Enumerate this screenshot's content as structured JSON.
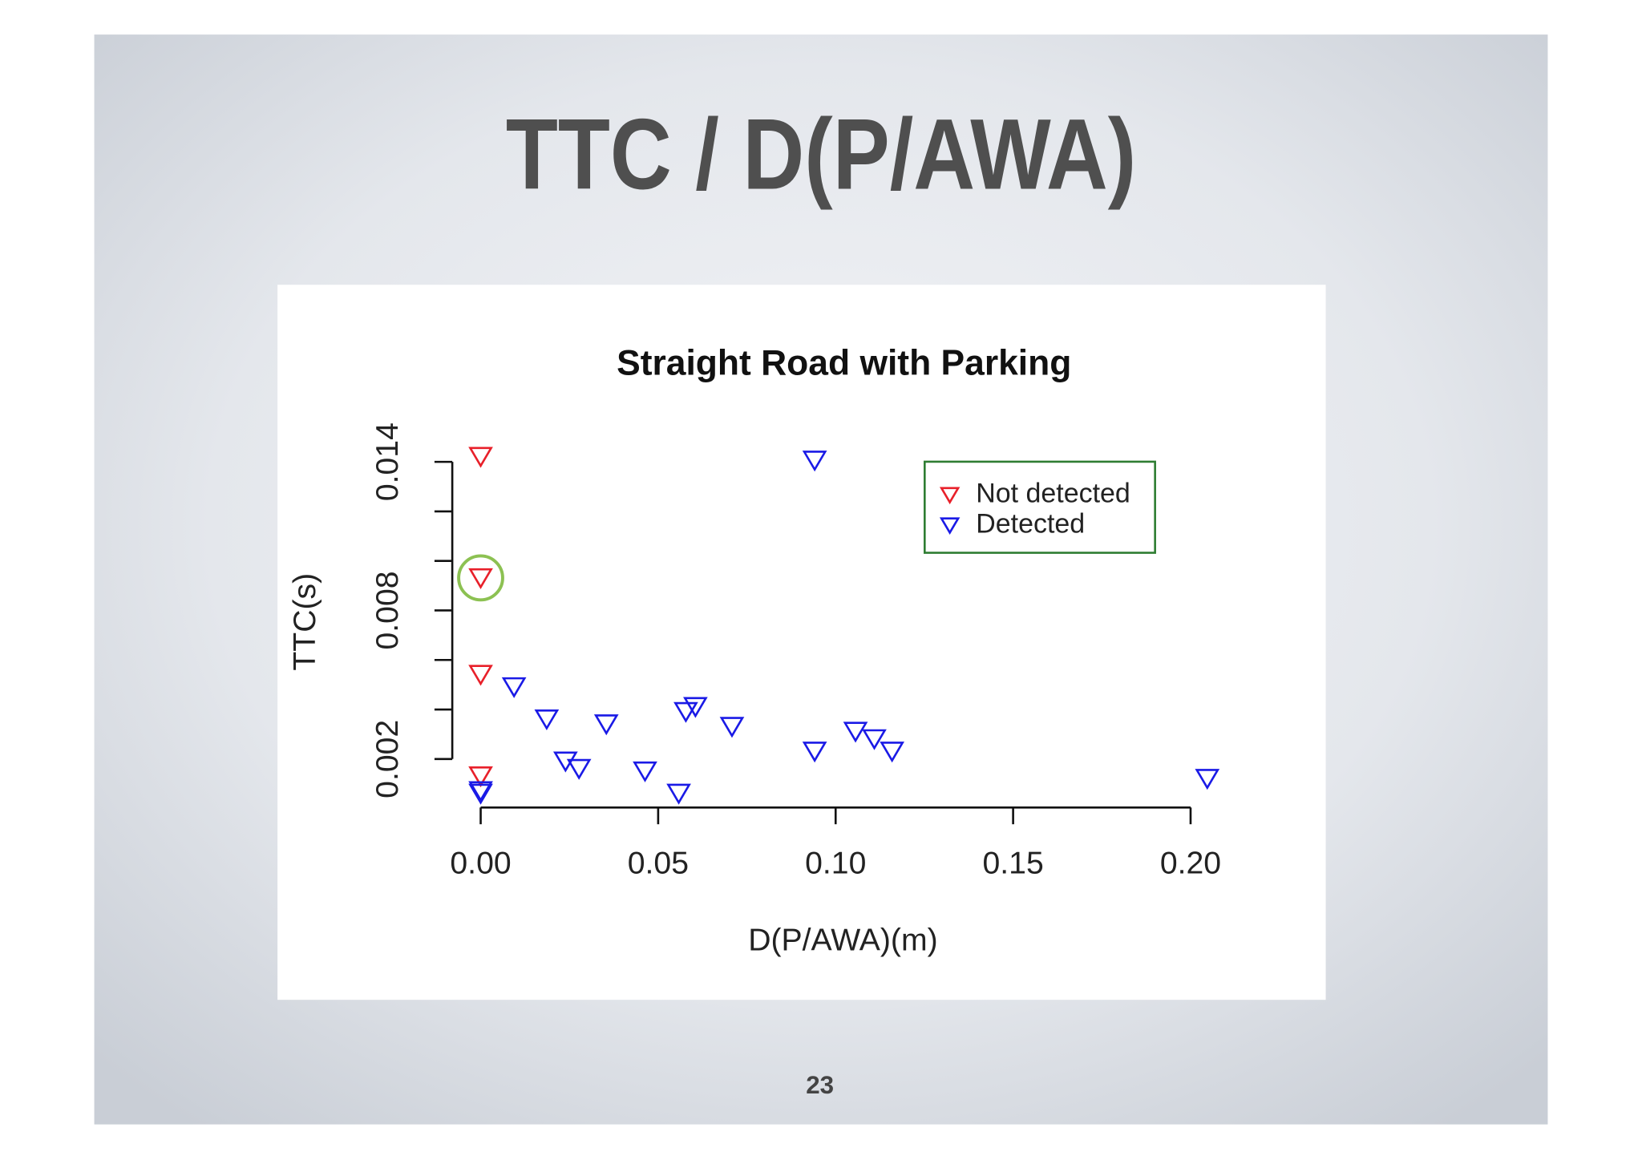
{
  "slide": {
    "title": "TTC / D(P/AWA)",
    "page_number": "23"
  },
  "chart_data": {
    "type": "scatter",
    "title": "Straight Road with Parking",
    "x_label": "D(P/AWA)(m)",
    "y_label": "TTC(s)",
    "xlim": [
      -0.008,
      0.213
    ],
    "ylim": [
      0,
      0.015
    ],
    "xticks": [
      {
        "value": 0,
        "label": "0.00"
      },
      {
        "value": 0.05,
        "label": "0.05"
      },
      {
        "value": 0.1,
        "label": "0.10"
      },
      {
        "value": 0.15,
        "label": "0.15"
      },
      {
        "value": 0.2,
        "label": "0.20"
      }
    ],
    "yticks": [
      0.002,
      0.008,
      0.014
    ],
    "yminorticks": [
      0.004,
      0.006,
      0.01,
      0.012
    ],
    "legend": "topright",
    "marker": "triangle-down",
    "series": [
      {
        "name": "Not detected",
        "color": "#e8202a",
        "x": [
          0,
          0,
          0,
          0
        ],
        "values": [
          0.0142,
          0.0093,
          0.0054,
          0.0013
        ]
      },
      {
        "name": "Detected",
        "color": "#1a1ae6",
        "x": [
          0,
          0,
          0.0094,
          0.0186,
          0.0239,
          0.0277,
          0.0354,
          0.0463,
          0.0558,
          0.0578,
          0.0605,
          0.0708,
          0.0941,
          0.0941,
          0.1056,
          0.1109,
          0.1159,
          0.2047
        ],
        "values": [
          0.0007,
          0.0006,
          0.0049,
          0.0036,
          0.0019,
          0.0016,
          0.0034,
          0.0015,
          0.0006,
          0.0039,
          0.0041,
          0.0033,
          0.01405,
          0.0023,
          0.0031,
          0.0028,
          0.0023,
          0.0012
        ]
      }
    ]
  }
}
